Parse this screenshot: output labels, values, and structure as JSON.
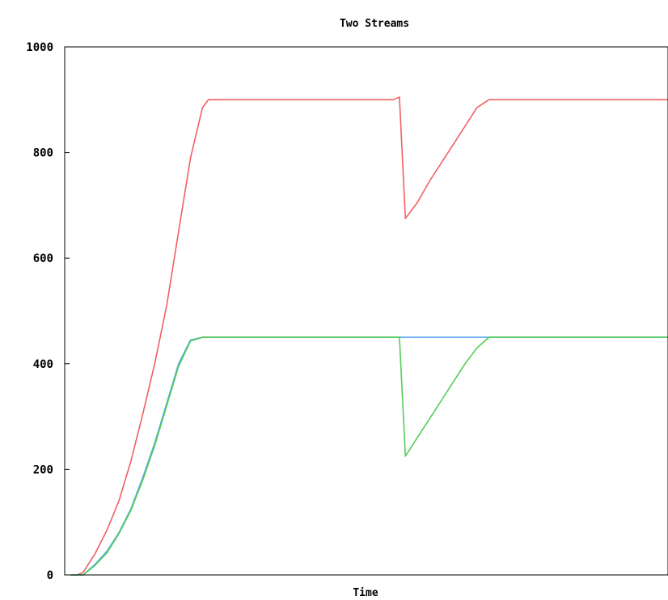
{
  "chart_data": {
    "type": "line",
    "title": "Two Streams",
    "xlabel": "Time",
    "ylabel": "",
    "ylim": [
      0,
      1000
    ],
    "xlim": [
      0,
      100
    ],
    "yticks": [
      "0",
      "200",
      "400",
      "600",
      "800",
      "1000"
    ],
    "grid": false,
    "legend": "none",
    "series": [
      {
        "color": "#f06060",
        "x": [
          0,
          1,
          2,
          4,
          6,
          8,
          10,
          12,
          14,
          16,
          18,
          20,
          22,
          23,
          24,
          28,
          36,
          44,
          50,
          54,
          55,
          56,
          58,
          60,
          62,
          64,
          66,
          68,
          70,
          80,
          90,
          100
        ],
        "y": [
          0,
          0,
          5,
          40,
          85,
          140,
          215,
          305,
          400,
          510,
          650,
          790,
          885,
          900,
          900,
          900,
          900,
          900,
          900,
          900,
          905,
          675,
          705,
          745,
          780,
          815,
          850,
          885,
          900,
          900,
          900,
          900
        ]
      },
      {
        "color": "#5aaaf0",
        "x": [
          0,
          2,
          4,
          6,
          8,
          10,
          12,
          14,
          16,
          18,
          20,
          22,
          23,
          24,
          30,
          40,
          50,
          54,
          56,
          58,
          60,
          62,
          64,
          66,
          68,
          70,
          80,
          90,
          100
        ],
        "y": [
          0,
          0,
          20,
          45,
          80,
          125,
          185,
          250,
          325,
          400,
          445,
          450,
          450,
          450,
          450,
          450,
          450,
          450,
          450,
          450,
          450,
          450,
          450,
          450,
          450,
          450,
          450,
          450,
          450
        ]
      },
      {
        "color": "#55cc55",
        "x": [
          0,
          2,
          4,
          6,
          8,
          10,
          12,
          14,
          16,
          18,
          20,
          22,
          23,
          24,
          30,
          40,
          50,
          54,
          55,
          56,
          58,
          60,
          62,
          64,
          66,
          68,
          70,
          80,
          90,
          100
        ],
        "y": [
          0,
          0,
          18,
          42,
          78,
          122,
          180,
          245,
          320,
          395,
          443,
          450,
          450,
          450,
          450,
          450,
          450,
          450,
          450,
          225,
          260,
          295,
          330,
          365,
          400,
          430,
          450,
          450,
          450,
          450
        ]
      }
    ]
  }
}
